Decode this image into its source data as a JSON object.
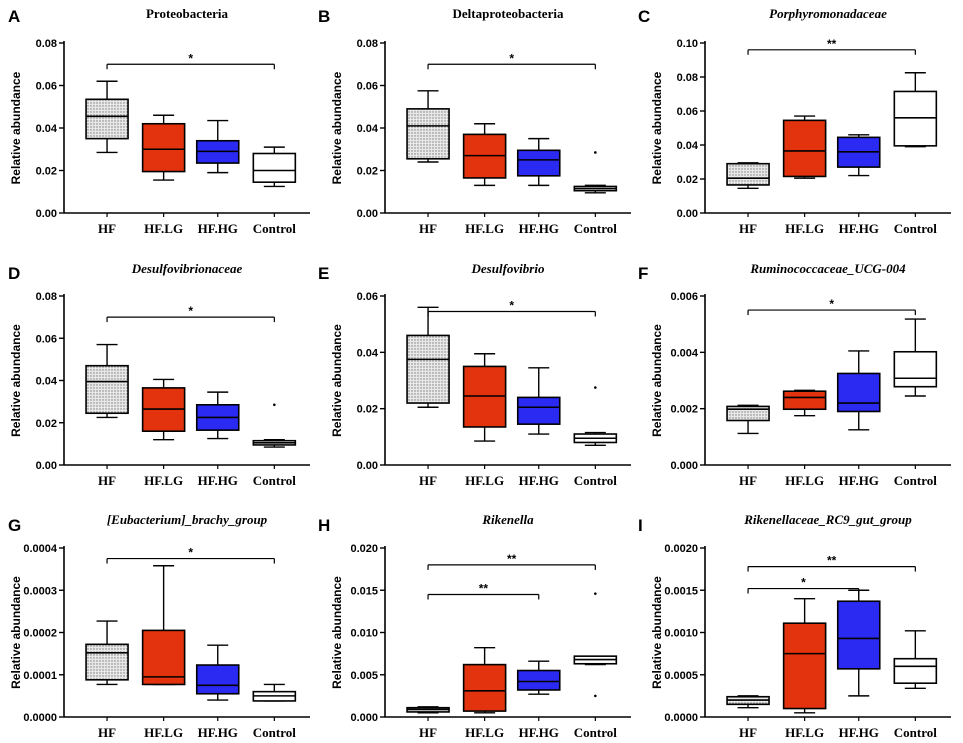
{
  "figure": {
    "colors": {
      "HF": "url(#dots)",
      "HF.LG": "#e2320e",
      "HF.HG": "#2a2af2",
      "Control": "#ffffff"
    }
  },
  "chart_data": [
    {
      "type": "boxplot",
      "letter": "A",
      "title": "Proteobacteria",
      "italic": false,
      "ylabel": "Relative abundance",
      "categories": [
        "HF",
        "HF.LG",
        "HF.HG",
        "Control"
      ],
      "ylim": [
        0,
        0.08
      ],
      "yticks": [
        "0.00",
        "0.02",
        "0.04",
        "0.06",
        "0.08"
      ],
      "ytick_values": [
        0,
        0.02,
        0.04,
        0.06,
        0.08
      ],
      "boxes": [
        {
          "min": 0.0285,
          "q1": 0.035,
          "median": 0.0455,
          "q3": 0.0535,
          "max": 0.062,
          "outliers": []
        },
        {
          "min": 0.0155,
          "q1": 0.0195,
          "median": 0.03,
          "q3": 0.042,
          "max": 0.046,
          "outliers": []
        },
        {
          "min": 0.019,
          "q1": 0.0235,
          "median": 0.029,
          "q3": 0.034,
          "max": 0.0435,
          "outliers": []
        },
        {
          "min": 0.0125,
          "q1": 0.0145,
          "median": 0.02,
          "q3": 0.028,
          "max": 0.031,
          "outliers": []
        }
      ],
      "significance": [
        {
          "from": 0,
          "to": 3,
          "y": 0.07,
          "label": "*"
        }
      ]
    },
    {
      "type": "boxplot",
      "letter": "B",
      "title": "Deltaproteobacteria",
      "italic": false,
      "ylabel": "Relative abundance",
      "categories": [
        "HF",
        "HF.LG",
        "HF.HG",
        "Control"
      ],
      "ylim": [
        0,
        0.08
      ],
      "yticks": [
        "0.00",
        "0.02",
        "0.04",
        "0.06",
        "0.08"
      ],
      "ytick_values": [
        0,
        0.02,
        0.04,
        0.06,
        0.08
      ],
      "boxes": [
        {
          "min": 0.024,
          "q1": 0.0255,
          "median": 0.041,
          "q3": 0.049,
          "max": 0.0575,
          "outliers": []
        },
        {
          "min": 0.013,
          "q1": 0.0165,
          "median": 0.027,
          "q3": 0.037,
          "max": 0.042,
          "outliers": []
        },
        {
          "min": 0.013,
          "q1": 0.0175,
          "median": 0.025,
          "q3": 0.0295,
          "max": 0.035,
          "outliers": []
        },
        {
          "min": 0.0095,
          "q1": 0.0105,
          "median": 0.0115,
          "q3": 0.0125,
          "max": 0.013,
          "outliers": [
            0.0285
          ]
        }
      ],
      "significance": [
        {
          "from": 0,
          "to": 3,
          "y": 0.07,
          "label": "*"
        }
      ]
    },
    {
      "type": "boxplot",
      "letter": "C",
      "title": "Porphyromonadaceae",
      "italic": true,
      "ylabel": "Relative abundance",
      "categories": [
        "HF",
        "HF.LG",
        "HF.HG",
        "Control"
      ],
      "ylim": [
        0,
        0.1
      ],
      "yticks": [
        "0.00",
        "0.02",
        "0.04",
        "0.06",
        "0.08",
        "0.10"
      ],
      "ytick_values": [
        0,
        0.02,
        0.04,
        0.06,
        0.08,
        0.1
      ],
      "boxes": [
        {
          "min": 0.0145,
          "q1": 0.0165,
          "median": 0.0205,
          "q3": 0.029,
          "max": 0.0295,
          "outliers": []
        },
        {
          "min": 0.0205,
          "q1": 0.0215,
          "median": 0.0365,
          "q3": 0.0545,
          "max": 0.057,
          "outliers": []
        },
        {
          "min": 0.022,
          "q1": 0.027,
          "median": 0.036,
          "q3": 0.0445,
          "max": 0.046,
          "outliers": []
        },
        {
          "min": 0.039,
          "q1": 0.0395,
          "median": 0.056,
          "q3": 0.0715,
          "max": 0.0825,
          "outliers": []
        }
      ],
      "significance": [
        {
          "from": 0,
          "to": 3,
          "y": 0.096,
          "label": "**"
        }
      ]
    },
    {
      "type": "boxplot",
      "letter": "D",
      "title": "Desulfovibrionaceae",
      "italic": true,
      "ylabel": "Relative abundance",
      "categories": [
        "HF",
        "HF.LG",
        "HF.HG",
        "Control"
      ],
      "ylim": [
        0,
        0.08
      ],
      "yticks": [
        "0.00",
        "0.02",
        "0.04",
        "0.06",
        "0.08"
      ],
      "ytick_values": [
        0,
        0.02,
        0.04,
        0.06,
        0.08
      ],
      "boxes": [
        {
          "min": 0.0225,
          "q1": 0.0245,
          "median": 0.0395,
          "q3": 0.047,
          "max": 0.057,
          "outliers": []
        },
        {
          "min": 0.012,
          "q1": 0.016,
          "median": 0.0265,
          "q3": 0.0365,
          "max": 0.0405,
          "outliers": []
        },
        {
          "min": 0.0125,
          "q1": 0.0165,
          "median": 0.0225,
          "q3": 0.0285,
          "max": 0.0345,
          "outliers": []
        },
        {
          "min": 0.0085,
          "q1": 0.0095,
          "median": 0.0105,
          "q3": 0.0115,
          "max": 0.012,
          "outliers": [
            0.0285
          ]
        }
      ],
      "significance": [
        {
          "from": 0,
          "to": 3,
          "y": 0.07,
          "label": "*"
        }
      ]
    },
    {
      "type": "boxplot",
      "letter": "E",
      "title": "Desulfovibrio",
      "italic": true,
      "ylabel": "Relative abundance",
      "categories": [
        "HF",
        "HF.LG",
        "HF.HG",
        "Control"
      ],
      "ylim": [
        0,
        0.06
      ],
      "yticks": [
        "0.00",
        "0.02",
        "0.04",
        "0.06"
      ],
      "ytick_values": [
        0,
        0.02,
        0.04,
        0.06
      ],
      "boxes": [
        {
          "min": 0.0205,
          "q1": 0.022,
          "median": 0.0375,
          "q3": 0.046,
          "max": 0.056,
          "outliers": []
        },
        {
          "min": 0.0085,
          "q1": 0.0135,
          "median": 0.0245,
          "q3": 0.035,
          "max": 0.0395,
          "outliers": []
        },
        {
          "min": 0.011,
          "q1": 0.0145,
          "median": 0.0205,
          "q3": 0.024,
          "max": 0.0345,
          "outliers": []
        },
        {
          "min": 0.007,
          "q1": 0.008,
          "median": 0.0095,
          "q3": 0.011,
          "max": 0.0115,
          "outliers": [
            0.0275
          ]
        }
      ],
      "significance": [
        {
          "from": 0,
          "to": 3,
          "y": 0.0545,
          "label": "*"
        }
      ]
    },
    {
      "type": "boxplot",
      "letter": "F",
      "title": "Ruminococcaceae_UCG-004",
      "italic": true,
      "ylabel": "Relative abundance",
      "categories": [
        "HF",
        "HF.LG",
        "HF.HG",
        "Control"
      ],
      "ylim": [
        0,
        0.006
      ],
      "yticks": [
        "0.000",
        "0.002",
        "0.004",
        "0.006"
      ],
      "ytick_values": [
        0,
        0.002,
        0.004,
        0.006
      ],
      "boxes": [
        {
          "min": 0.00112,
          "q1": 0.00158,
          "median": 0.00198,
          "q3": 0.00208,
          "max": 0.00212,
          "outliers": []
        },
        {
          "min": 0.00175,
          "q1": 0.00198,
          "median": 0.0024,
          "q3": 0.00262,
          "max": 0.00265,
          "outliers": []
        },
        {
          "min": 0.00125,
          "q1": 0.0019,
          "median": 0.0022,
          "q3": 0.00325,
          "max": 0.00405,
          "outliers": []
        },
        {
          "min": 0.00245,
          "q1": 0.00278,
          "median": 0.00308,
          "q3": 0.00402,
          "max": 0.00518,
          "outliers": []
        }
      ],
      "significance": [
        {
          "from": 0,
          "to": 3,
          "y": 0.0055,
          "label": "*"
        }
      ]
    },
    {
      "type": "boxplot",
      "letter": "G",
      "title": "[Eubacterium]_brachy_group",
      "italic": true,
      "ylabel": "Relative abundance",
      "categories": [
        "HF",
        "HF.LG",
        "HF.HG",
        "Control"
      ],
      "ylim": [
        0,
        0.0004
      ],
      "yticks": [
        "0.0000",
        "0.0001",
        "0.0002",
        "0.0003",
        "0.0004"
      ],
      "ytick_values": [
        0,
        0.0001,
        0.0002,
        0.0003,
        0.0004
      ],
      "boxes": [
        {
          "min": 7.7e-05,
          "q1": 8.8e-05,
          "median": 0.000152,
          "q3": 0.000172,
          "max": 0.000227,
          "outliers": []
        },
        {
          "min": 7.7e-05,
          "q1": 7.7e-05,
          "median": 9.5e-05,
          "q3": 0.000205,
          "max": 0.000358,
          "outliers": []
        },
        {
          "min": 4e-05,
          "q1": 5.5e-05,
          "median": 7.5e-05,
          "q3": 0.000123,
          "max": 0.00017,
          "outliers": []
        },
        {
          "min": 3.8e-05,
          "q1": 3.8e-05,
          "median": 5e-05,
          "q3": 6e-05,
          "max": 7.7e-05,
          "outliers": []
        }
      ],
      "significance": [
        {
          "from": 0,
          "to": 3,
          "y": 0.000375,
          "label": "*"
        }
      ]
    },
    {
      "type": "boxplot",
      "letter": "H",
      "title": "Rikenella",
      "italic": true,
      "ylabel": "Relative abundance",
      "categories": [
        "HF",
        "HF.LG",
        "HF.HG",
        "Control"
      ],
      "ylim": [
        0,
        0.02
      ],
      "yticks": [
        "0.000",
        "0.005",
        "0.010",
        "0.015",
        "0.020"
      ],
      "ytick_values": [
        0,
        0.005,
        0.01,
        0.015,
        0.02
      ],
      "boxes": [
        {
          "min": 0.0005,
          "q1": 0.0006,
          "median": 0.0009,
          "q3": 0.0011,
          "max": 0.0012,
          "outliers": []
        },
        {
          "min": 0.0005,
          "q1": 0.0007,
          "median": 0.0031,
          "q3": 0.0062,
          "max": 0.0082,
          "outliers": []
        },
        {
          "min": 0.0027,
          "q1": 0.0032,
          "median": 0.0042,
          "q3": 0.0055,
          "max": 0.0066,
          "outliers": []
        },
        {
          "min": 0.0062,
          "q1": 0.0063,
          "median": 0.0068,
          "q3": 0.0072,
          "max": 0.0072,
          "outliers": [
            0.0146,
            0.0025
          ]
        }
      ],
      "significance": [
        {
          "from": 0,
          "to": 3,
          "y": 0.018,
          "label": "**"
        },
        {
          "from": 0,
          "to": 2,
          "y": 0.0145,
          "label": "**"
        }
      ]
    },
    {
      "type": "boxplot",
      "letter": "I",
      "title": "Rikenellaceae_RC9_gut_group",
      "italic": true,
      "ylabel": "Relative abundance",
      "categories": [
        "HF",
        "HF.LG",
        "HF.HG",
        "Control"
      ],
      "ylim": [
        0,
        0.002
      ],
      "yticks": [
        "0.0000",
        "0.0005",
        "0.0010",
        "0.0015",
        "0.0020"
      ],
      "ytick_values": [
        0,
        0.0005,
        0.001,
        0.0015,
        0.002
      ],
      "boxes": [
        {
          "min": 0.00011,
          "q1": 0.00015,
          "median": 0.0002,
          "q3": 0.00024,
          "max": 0.00025,
          "outliers": []
        },
        {
          "min": 5e-05,
          "q1": 0.0001,
          "median": 0.00075,
          "q3": 0.00111,
          "max": 0.0014,
          "outliers": []
        },
        {
          "min": 0.00025,
          "q1": 0.00057,
          "median": 0.00093,
          "q3": 0.00137,
          "max": 0.0015,
          "outliers": []
        },
        {
          "min": 0.00034,
          "q1": 0.0004,
          "median": 0.0006,
          "q3": 0.00069,
          "max": 0.00102,
          "outliers": []
        }
      ],
      "significance": [
        {
          "from": 0,
          "to": 3,
          "y": 0.00178,
          "label": "**"
        },
        {
          "from": 0,
          "to": 2,
          "y": 0.00152,
          "label": "*"
        }
      ]
    }
  ]
}
